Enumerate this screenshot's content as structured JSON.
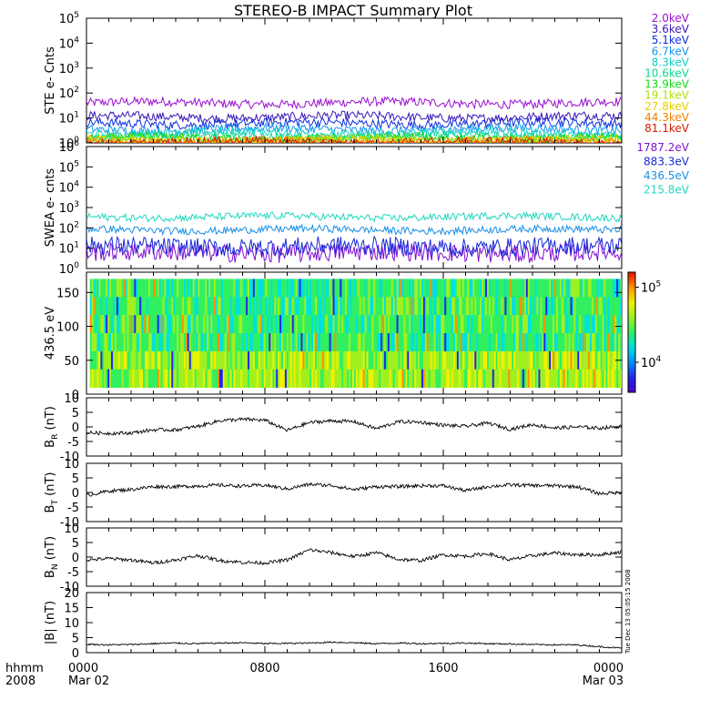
{
  "title": "STEREO-B IMPACT Summary Plot",
  "time_axis": {
    "row1": "hhmm",
    "row2": "2008",
    "ticks": [
      {
        "hours": 0,
        "top": "0000",
        "bottom": "Mar 02"
      },
      {
        "hours": 8,
        "top": "0800",
        "bottom": ""
      },
      {
        "hours": 16,
        "top": "1600",
        "bottom": ""
      },
      {
        "hours": 24,
        "top": "0000",
        "bottom": "Mar 03"
      }
    ],
    "range_hours": [
      0,
      24
    ]
  },
  "stamp": "Tue Dec 13 05:05:15 2008",
  "colorbar": {
    "labels": [
      {
        "mantissa": "10",
        "exp": "5",
        "value": 100000
      },
      {
        "mantissa": "10",
        "exp": "4",
        "value": 10000
      }
    ],
    "colors": [
      "#4b00c8",
      "#2028e8",
      "#0090ff",
      "#00e0e0",
      "#30f060",
      "#a0f020",
      "#f0f000",
      "#ff9000",
      "#e01000"
    ]
  },
  "chart_data": [
    {
      "id": "ste",
      "type": "line",
      "ylabel": "STE e- Cnts",
      "yscale": "log",
      "ylim": [
        1,
        100000
      ],
      "yticks": [
        {
          "mantissa": "10",
          "exp": "0",
          "value": 1
        },
        {
          "mantissa": "10",
          "exp": "1",
          "value": 10
        },
        {
          "mantissa": "10",
          "exp": "2",
          "value": 100
        },
        {
          "mantissa": "10",
          "exp": "3",
          "value": 1000
        },
        {
          "mantissa": "10",
          "exp": "4",
          "value": 10000
        },
        {
          "mantissa": "10",
          "exp": "5",
          "value": 100000
        }
      ],
      "series": [
        {
          "name": "2.0keV",
          "color": "#9a10d0",
          "level": 40
        },
        {
          "name": "3.6keV",
          "color": "#3a18b8",
          "level": 11
        },
        {
          "name": "5.1keV",
          "color": "#1030e0",
          "level": 6
        },
        {
          "name": "6.7keV",
          "color": "#1898f0",
          "level": 3.5
        },
        {
          "name": "8.3keV",
          "color": "#10d0c8",
          "level": 2.5
        },
        {
          "name": "10.6keV",
          "color": "#10d890",
          "level": 1.8
        },
        {
          "name": "13.9keV",
          "color": "#18d818",
          "level": 1.5
        },
        {
          "name": "19.1keV",
          "color": "#b0e010",
          "level": 1.3
        },
        {
          "name": "27.8keV",
          "color": "#e8d000",
          "level": 1.2
        },
        {
          "name": "44.3keV",
          "color": "#f08000",
          "level": 1.1
        },
        {
          "name": "81.1keV",
          "color": "#d02000",
          "level": 1.05
        }
      ]
    },
    {
      "id": "swea",
      "type": "line",
      "ylabel": "SWEA e- cnts",
      "yscale": "log",
      "ylim": [
        1,
        1000000
      ],
      "yticks": [
        {
          "mantissa": "10",
          "exp": "0",
          "value": 1
        },
        {
          "mantissa": "10",
          "exp": "1",
          "value": 10
        },
        {
          "mantissa": "10",
          "exp": "2",
          "value": 100
        },
        {
          "mantissa": "10",
          "exp": "3",
          "value": 1000
        },
        {
          "mantissa": "10",
          "exp": "4",
          "value": 10000
        },
        {
          "mantissa": "10",
          "exp": "5",
          "value": 100000
        },
        {
          "mantissa": "10",
          "exp": "6",
          "value": 1000000
        }
      ],
      "series": [
        {
          "name": "1787.2eV",
          "color": "#8010d0",
          "level": 6
        },
        {
          "name": "883.3eV",
          "color": "#1828d8",
          "level": 12
        },
        {
          "name": "436.5eV",
          "color": "#1890e8",
          "level": 80
        },
        {
          "name": "215.8eV",
          "color": "#20d8c0",
          "level": 350
        }
      ]
    },
    {
      "id": "pad",
      "type": "heatmap",
      "ylabel": "436.5 eV",
      "ylim": [
        0,
        180
      ],
      "yticks": [
        "0",
        "50",
        "100",
        "150"
      ]
    },
    {
      "id": "br",
      "type": "line",
      "ylabel": "BR (nT)",
      "ylabel_main": "B",
      "ylabel_sub": "R",
      "ylabel_unit": "(nT)",
      "ylim": [
        -10,
        10
      ],
      "yticks": [
        "-10",
        "-5",
        "0",
        "5",
        "10"
      ],
      "x": [
        0,
        1,
        2,
        3,
        4,
        5,
        6,
        7,
        8,
        9,
        10,
        11,
        12,
        13,
        14,
        15,
        16,
        17,
        18,
        19,
        20,
        21,
        22,
        23,
        24
      ],
      "y": [
        -2.0,
        -2.2,
        -2.1,
        -1.0,
        -1.0,
        0.2,
        2.2,
        2.6,
        2.3,
        -1.2,
        1.5,
        2.1,
        1.8,
        -0.6,
        1.8,
        1.6,
        0.6,
        0.2,
        1.3,
        -0.8,
        0.8,
        -0.4,
        0.0,
        -0.4,
        0.2
      ]
    },
    {
      "id": "bt",
      "type": "line",
      "ylabel": "BT (nT)",
      "ylabel_main": "B",
      "ylabel_sub": "T",
      "ylabel_unit": "(nT)",
      "ylim": [
        -10,
        10
      ],
      "yticks": [
        "-10",
        "-5",
        "0",
        "5",
        "10"
      ],
      "x": [
        0,
        1,
        2,
        3,
        4,
        5,
        6,
        7,
        8,
        9,
        10,
        11,
        12,
        13,
        14,
        15,
        16,
        17,
        18,
        19,
        20,
        21,
        22,
        23,
        24
      ],
      "y": [
        -1.0,
        0.5,
        1.0,
        2.0,
        2.0,
        2.2,
        2.5,
        2.2,
        2.5,
        1.2,
        2.8,
        2.4,
        1.0,
        2.0,
        2.0,
        2.3,
        2.3,
        0.6,
        2.0,
        2.6,
        2.4,
        2.3,
        2.0,
        -0.4,
        0.0
      ]
    },
    {
      "id": "bn",
      "type": "line",
      "ylabel": "BN (nT)",
      "ylabel_main": "B",
      "ylabel_sub": "N",
      "ylabel_unit": "(nT)",
      "ylim": [
        -10,
        10
      ],
      "yticks": [
        "-10",
        "-5",
        "0",
        "5",
        "10"
      ],
      "x": [
        0,
        1,
        2,
        3,
        4,
        5,
        6,
        7,
        8,
        9,
        10,
        11,
        12,
        13,
        14,
        15,
        16,
        17,
        18,
        19,
        20,
        21,
        22,
        23,
        24
      ],
      "y": [
        -1.0,
        -0.5,
        -1.0,
        -2.0,
        -1.0,
        0.5,
        -1.2,
        -1.8,
        -2.0,
        -1.0,
        2.5,
        1.5,
        0.2,
        1.5,
        -0.8,
        -1.2,
        0.8,
        0.3,
        1.2,
        -1.0,
        0.5,
        1.4,
        0.8,
        0.8,
        1.8
      ]
    },
    {
      "id": "bmag",
      "type": "line",
      "ylabel": "|B| (nT)",
      "ylabel_main": "|B|",
      "ylabel_sub": "",
      "ylabel_unit": "(nT)",
      "ylim": [
        0,
        20
      ],
      "yticks": [
        "0",
        "5",
        "10",
        "15",
        "20"
      ],
      "x": [
        0,
        1,
        2,
        3,
        4,
        5,
        6,
        7,
        8,
        9,
        10,
        11,
        12,
        13,
        14,
        15,
        16,
        17,
        18,
        19,
        20,
        21,
        22,
        23,
        24
      ],
      "y": [
        2.8,
        2.6,
        2.7,
        3.0,
        3.2,
        3.0,
        3.2,
        3.3,
        3.0,
        3.1,
        3.2,
        3.5,
        3.3,
        3.0,
        3.2,
        3.0,
        3.1,
        3.2,
        3.0,
        2.9,
        2.7,
        2.6,
        2.6,
        2.0,
        1.5
      ]
    }
  ]
}
